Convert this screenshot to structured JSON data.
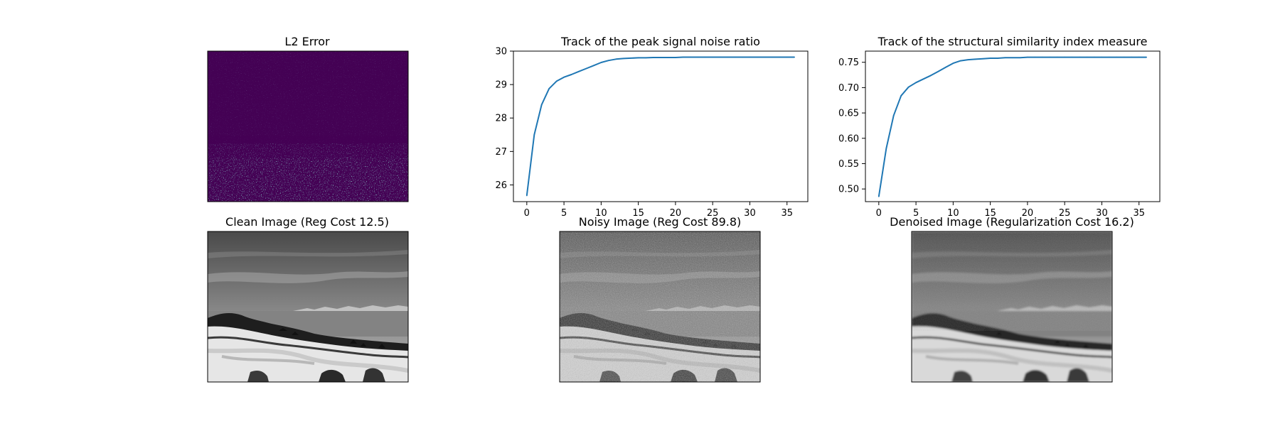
{
  "figure": {
    "titles": {
      "l2_error": "L2 Error",
      "clean": "Clean Image (Reg Cost 12.5)",
      "noisy": "Noisy Image (Reg Cost 89.8)",
      "denoised": "Denoised Image (Regularization Cost 16.2)"
    }
  },
  "colors": {
    "line": "#1f77b4",
    "heatmap_background": "#440154",
    "heatmap_speckle": [
      "#3b528b",
      "#21918c",
      "#5ec962"
    ],
    "axes": "#000000"
  },
  "chart_data": [
    {
      "type": "line",
      "title": "Track of the peak signal noise ratio",
      "xlabel": "",
      "ylabel": "",
      "xlim": [
        -1.8,
        37.8
      ],
      "ylim": [
        25.5,
        30.0
      ],
      "xticks": [
        0,
        5,
        10,
        15,
        20,
        25,
        30,
        35
      ],
      "yticks": [
        26,
        27,
        28,
        29,
        30
      ],
      "grid": false,
      "series": [
        {
          "x": [
            0,
            1,
            2,
            3,
            4,
            5,
            6,
            7,
            8,
            9,
            10,
            11,
            12,
            13,
            14,
            15,
            16,
            17,
            18,
            19,
            20,
            21,
            22,
            23,
            24,
            25,
            26,
            27,
            28,
            29,
            30,
            31,
            32,
            33,
            34,
            35,
            36
          ],
          "values": [
            25.68,
            27.5,
            28.4,
            28.88,
            29.1,
            29.22,
            29.3,
            29.39,
            29.48,
            29.57,
            29.66,
            29.72,
            29.76,
            29.78,
            29.79,
            29.8,
            29.8,
            29.81,
            29.81,
            29.81,
            29.81,
            29.82,
            29.82,
            29.82,
            29.82,
            29.82,
            29.82,
            29.82,
            29.82,
            29.82,
            29.82,
            29.82,
            29.82,
            29.82,
            29.82,
            29.82,
            29.82
          ]
        }
      ]
    },
    {
      "type": "line",
      "title": "Track of the structural similarity index measure",
      "xlabel": "",
      "ylabel": "",
      "xlim": [
        -1.8,
        37.8
      ],
      "ylim": [
        0.475,
        0.772
      ],
      "xticks": [
        0,
        5,
        10,
        15,
        20,
        25,
        30,
        35
      ],
      "yticks": [
        0.5,
        0.55,
        0.6,
        0.65,
        0.7,
        0.75
      ],
      "ytick_labels": [
        "0.50",
        "0.55",
        "0.60",
        "0.65",
        "0.70",
        "0.75"
      ],
      "grid": false,
      "series": [
        {
          "x": [
            0,
            1,
            2,
            3,
            4,
            5,
            6,
            7,
            8,
            9,
            10,
            11,
            12,
            13,
            14,
            15,
            16,
            17,
            18,
            19,
            20,
            21,
            22,
            23,
            24,
            25,
            26,
            27,
            28,
            29,
            30,
            31,
            32,
            33,
            34,
            35,
            36
          ],
          "values": [
            0.485,
            0.58,
            0.645,
            0.684,
            0.701,
            0.71,
            0.717,
            0.724,
            0.732,
            0.74,
            0.748,
            0.753,
            0.755,
            0.756,
            0.757,
            0.758,
            0.758,
            0.759,
            0.759,
            0.759,
            0.76,
            0.76,
            0.76,
            0.76,
            0.76,
            0.76,
            0.76,
            0.76,
            0.76,
            0.76,
            0.76,
            0.76,
            0.76,
            0.76,
            0.76,
            0.76,
            0.76
          ]
        }
      ]
    }
  ]
}
